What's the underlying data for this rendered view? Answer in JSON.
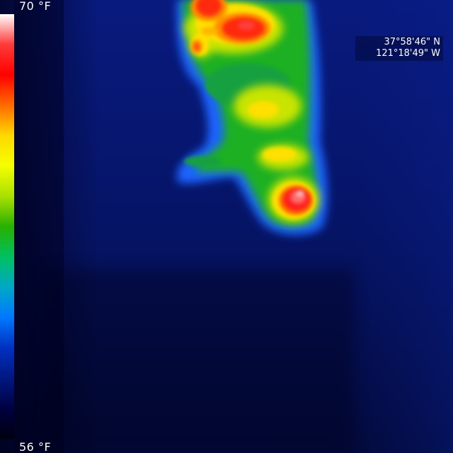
{
  "scale": {
    "max_label": "70 °F",
    "min_label": "56 °F",
    "palette": [
      "#ffffff",
      "#ff3a3a",
      "#ff0000",
      "#ff6a00",
      "#ffd800",
      "#f4ff00",
      "#a8e000",
      "#28b000",
      "#00c060",
      "#00a8c8",
      "#0078ff",
      "#0030c0",
      "#001880",
      "#000040",
      "#000010"
    ]
  },
  "location": {
    "latitude": "37°58'46\" N",
    "longitude": "121°18'49\" W"
  }
}
